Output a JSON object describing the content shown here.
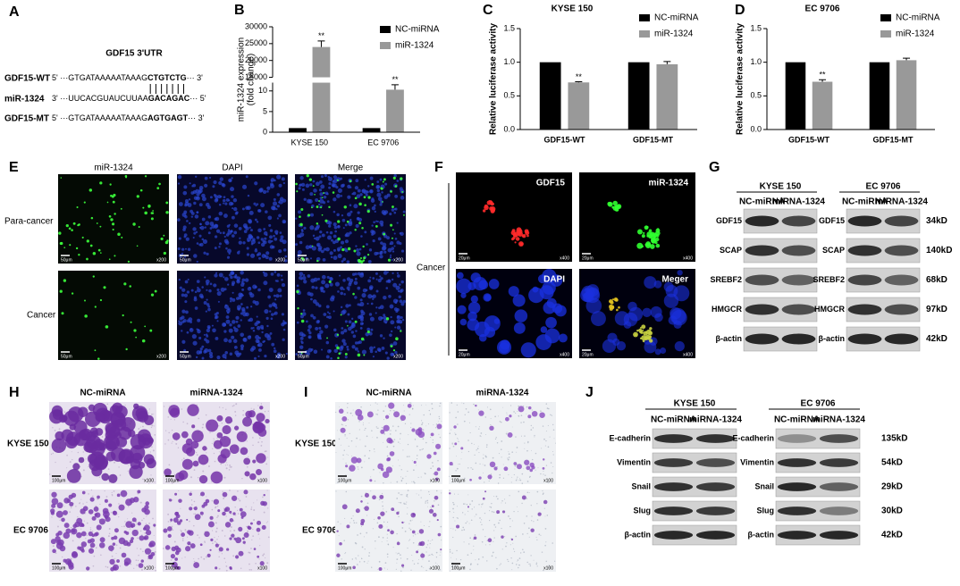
{
  "panel_letters": [
    "A",
    "B",
    "C",
    "D",
    "E",
    "F",
    "G",
    "H",
    "I",
    "J"
  ],
  "panel_a": {
    "title": "GDF15 3'UTR",
    "rows": [
      {
        "label": "GDF15-WT",
        "seq": [
          "5' ···GTGATAAAAATAAAG",
          "CTGTCTG",
          "··· 3'"
        ]
      },
      {
        "label": "miR-1324",
        "seq": [
          "3' ···UUCACGUAUCUUAA",
          "GACAGAC",
          "··· 5'"
        ]
      },
      {
        "label": "GDF15-MT",
        "seq": [
          "5' ···GTGATAAAAATAAAG",
          "AGTGAGT",
          "··· 3'"
        ]
      }
    ]
  },
  "chart_data": [
    {
      "type": "bar",
      "ylabel": [
        "miR-1324 expression",
        "(fold change)"
      ],
      "categories": [
        "KYSE 150",
        "EC 9706"
      ],
      "series": [
        {
          "name": "NC-miRNA",
          "color": "#000000",
          "values": [
            1,
            1
          ]
        },
        {
          "name": "miR-1324",
          "color": "#999999",
          "values": [
            24000,
            10.3
          ],
          "errors": [
            1800,
            1.2
          ]
        }
      ],
      "ylim": [
        0,
        30000
      ],
      "axis_break": [
        12,
        15000
      ],
      "yticks": [
        0,
        5,
        10,
        15000,
        20000,
        25000,
        30000
      ],
      "annotations": [
        {
          "text": "**",
          "category": "KYSE 150",
          "series": "miR-1324"
        },
        {
          "text": "**",
          "category": "EC 9706",
          "series": "miR-1324"
        }
      ]
    },
    {
      "type": "bar",
      "title": "KYSE 150",
      "ylabel": [
        "Relative luciferase activity"
      ],
      "categories": [
        "GDF15-WT",
        "GDF15-MT"
      ],
      "series": [
        {
          "name": "NC-miRNA",
          "color": "#000000",
          "values": [
            1.0,
            1.0
          ]
        },
        {
          "name": "miR-1324",
          "color": "#999999",
          "values": [
            0.7,
            0.97
          ],
          "errors": [
            0.01,
            0.04
          ]
        }
      ],
      "ylim": [
        0,
        1.5
      ],
      "yticks": [
        {
          "value": 0,
          "label": "0.0"
        },
        0.5,
        {
          "value": 1,
          "label": "1.0"
        },
        1.5
      ],
      "annotations": [
        {
          "text": "**",
          "category": "GDF15-WT",
          "series": "miR-1324"
        }
      ]
    },
    {
      "type": "bar",
      "title": "EC 9706",
      "ylabel": [
        "Relative luciferase activity"
      ],
      "categories": [
        "GDF15-WT",
        "GDF15-MT"
      ],
      "series": [
        {
          "name": "NC-miRNA",
          "color": "#000000",
          "values": [
            1.0,
            1.0
          ]
        },
        {
          "name": "miR-1324",
          "color": "#999999",
          "values": [
            0.71,
            1.03
          ],
          "errors": [
            0.03,
            0.03
          ]
        }
      ],
      "ylim": [
        0,
        1.5
      ],
      "yticks": [
        {
          "value": 0,
          "label": "0.0"
        },
        0.5,
        {
          "value": 1,
          "label": "1.0"
        },
        1.5
      ],
      "annotations": [
        {
          "text": "**",
          "category": "GDF15-WT",
          "series": "miR-1324"
        }
      ]
    }
  ],
  "panel_e": {
    "columns": [
      "miR-1324",
      "DAPI",
      "Merge"
    ],
    "rows": [
      "Para-cancer",
      "Cancer"
    ],
    "scale_bar": "50μm",
    "magnification": "x200"
  },
  "panel_f": {
    "row_label": "Cancer",
    "images": [
      "GDF15",
      "miR-1324",
      "DAPI",
      "Meger"
    ],
    "scale_bar": "20μm",
    "magnification": "x400"
  },
  "panel_g": {
    "groups": [
      "KYSE 150",
      "EC 9706"
    ],
    "lanes": [
      "NC-miRNA",
      "miRNA-1324"
    ],
    "proteins": [
      "GDF15",
      "SCAP",
      "SREBF2",
      "HMGCR",
      "β-actin"
    ],
    "sizes": [
      "34kD",
      "140kD",
      "68kD",
      "97kD",
      "42kD"
    ]
  },
  "panel_h": {
    "columns": [
      "NC-miRNA",
      "miRNA-1324"
    ],
    "rows": [
      "KYSE 150",
      "EC 9706"
    ],
    "scale_bar": "100μm",
    "magnification": "x100"
  },
  "panel_i": {
    "columns": [
      "NC-miRNA",
      "miRNA-1324"
    ],
    "rows": [
      "KYSE 150",
      "EC 9706"
    ],
    "scale_bar": "100μm",
    "magnification": "x100"
  },
  "panel_j": {
    "groups": [
      "KYSE 150",
      "EC 9706"
    ],
    "lanes": [
      "NC-miRNA",
      "miRNA-1324"
    ],
    "proteins": [
      "E-cadherin",
      "Vimentin",
      "Snail",
      "Slug",
      "β-actin"
    ],
    "sizes": [
      "135kD",
      "54kD",
      "29kD",
      "30kD",
      "42kD"
    ]
  }
}
